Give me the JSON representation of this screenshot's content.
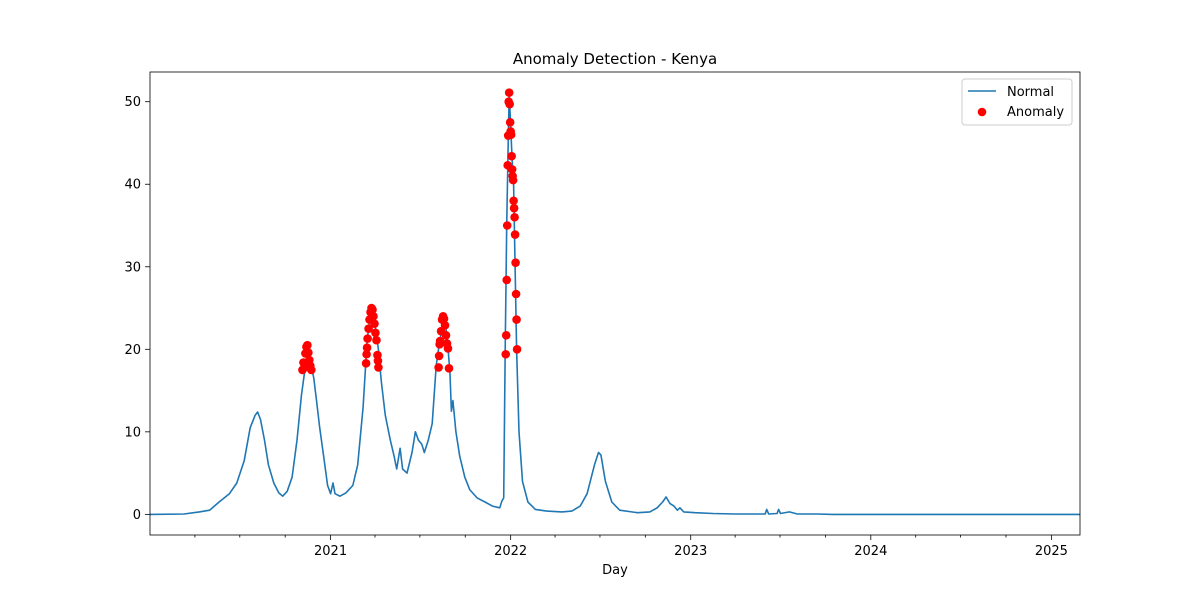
{
  "chart_data": {
    "type": "line",
    "title": "Anomaly Detection - Kenya",
    "xlabel": "Day",
    "ylabel": "",
    "xlim": [
      "2020-01-01",
      "2025-02-28"
    ],
    "ylim": [
      -2.5,
      53.6
    ],
    "x_ticks": [
      {
        "value": "2021-01-01",
        "label": "2021"
      },
      {
        "value": "2022-01-01",
        "label": "2022"
      },
      {
        "value": "2023-01-01",
        "label": "2023"
      },
      {
        "value": "2024-01-01",
        "label": "2024"
      },
      {
        "value": "2025-01-01",
        "label": "2025"
      }
    ],
    "y_ticks": [
      0,
      10,
      20,
      30,
      40,
      50
    ],
    "legend": {
      "placement": "top-right",
      "entries": [
        "Normal",
        "Anomaly"
      ]
    },
    "colors": {
      "normal": "#1f77b4",
      "anomaly": "#ff0000"
    },
    "series": [
      {
        "name": "Normal",
        "type": "line",
        "points": [
          [
            "2020-01-01",
            0
          ],
          [
            "2020-03-10",
            0.05
          ],
          [
            "2020-04-10",
            0.3
          ],
          [
            "2020-05-01",
            0.5
          ],
          [
            "2020-05-20",
            1.5
          ],
          [
            "2020-06-10",
            2.5
          ],
          [
            "2020-06-25",
            3.8
          ],
          [
            "2020-07-10",
            6.5
          ],
          [
            "2020-07-22",
            10.5
          ],
          [
            "2020-08-01",
            12.0
          ],
          [
            "2020-08-06",
            12.4
          ],
          [
            "2020-08-12",
            11.5
          ],
          [
            "2020-08-20",
            9.0
          ],
          [
            "2020-08-28",
            6.0
          ],
          [
            "2020-09-08",
            3.8
          ],
          [
            "2020-09-18",
            2.6
          ],
          [
            "2020-09-26",
            2.2
          ],
          [
            "2020-10-05",
            2.8
          ],
          [
            "2020-10-15",
            4.5
          ],
          [
            "2020-10-25",
            9.0
          ],
          [
            "2020-11-03",
            14.5
          ],
          [
            "2020-11-10",
            17.5
          ],
          [
            "2020-11-15",
            19.0
          ],
          [
            "2020-11-18",
            19.6
          ],
          [
            "2020-11-23",
            18.0
          ],
          [
            "2020-11-28",
            16.5
          ],
          [
            "2020-12-04",
            13.5
          ],
          [
            "2020-12-10",
            10.5
          ],
          [
            "2020-12-18",
            7.0
          ],
          [
            "2020-12-26",
            3.5
          ],
          [
            "2021-01-01",
            2.5
          ],
          [
            "2021-01-06",
            3.8
          ],
          [
            "2021-01-10",
            2.5
          ],
          [
            "2021-01-20",
            2.2
          ],
          [
            "2021-02-01",
            2.6
          ],
          [
            "2021-02-15",
            3.5
          ],
          [
            "2021-02-25",
            6.0
          ],
          [
            "2021-03-08",
            13.0
          ],
          [
            "2021-03-16",
            21.0
          ],
          [
            "2021-03-22",
            24.0
          ],
          [
            "2021-03-26",
            24.8
          ],
          [
            "2021-04-01",
            23.0
          ],
          [
            "2021-04-08",
            20.0
          ],
          [
            "2021-04-14",
            16.0
          ],
          [
            "2021-04-22",
            12.0
          ],
          [
            "2021-05-02",
            9.0
          ],
          [
            "2021-05-10",
            7.0
          ],
          [
            "2021-05-15",
            5.5
          ],
          [
            "2021-05-22",
            8.0
          ],
          [
            "2021-05-27",
            5.5
          ],
          [
            "2021-06-05",
            5.0
          ],
          [
            "2021-06-15",
            7.5
          ],
          [
            "2021-06-22",
            10.0
          ],
          [
            "2021-06-28",
            9.0
          ],
          [
            "2021-07-05",
            8.5
          ],
          [
            "2021-07-10",
            7.5
          ],
          [
            "2021-07-18",
            9.0
          ],
          [
            "2021-07-26",
            11.0
          ],
          [
            "2021-08-03",
            18.0
          ],
          [
            "2021-08-10",
            21.0
          ],
          [
            "2021-08-17",
            23.0
          ],
          [
            "2021-08-20",
            24.0
          ],
          [
            "2021-08-26",
            21.0
          ],
          [
            "2021-08-31",
            17.0
          ],
          [
            "2021-09-03",
            12.5
          ],
          [
            "2021-09-06",
            13.8
          ],
          [
            "2021-09-12",
            10.0
          ],
          [
            "2021-09-20",
            7.0
          ],
          [
            "2021-09-30",
            4.5
          ],
          [
            "2021-10-10",
            3.0
          ],
          [
            "2021-10-25",
            2.0
          ],
          [
            "2021-11-10",
            1.5
          ],
          [
            "2021-11-25",
            1.0
          ],
          [
            "2021-12-10",
            0.8
          ],
          [
            "2021-12-14",
            1.6
          ],
          [
            "2021-12-18",
            2.0
          ],
          [
            "2021-12-21",
            20.0
          ],
          [
            "2021-12-24",
            35.0
          ],
          [
            "2021-12-27",
            45.0
          ],
          [
            "2021-12-29",
            51.0
          ],
          [
            "2022-01-01",
            47.0
          ],
          [
            "2022-01-04",
            43.0
          ],
          [
            "2022-01-07",
            40.0
          ],
          [
            "2022-01-10",
            30.0
          ],
          [
            "2022-01-13",
            20.0
          ],
          [
            "2022-01-18",
            10.0
          ],
          [
            "2022-01-25",
            4.0
          ],
          [
            "2022-02-05",
            1.5
          ],
          [
            "2022-02-20",
            0.6
          ],
          [
            "2022-03-15",
            0.4
          ],
          [
            "2022-04-15",
            0.3
          ],
          [
            "2022-05-05",
            0.4
          ],
          [
            "2022-05-22",
            1.0
          ],
          [
            "2022-06-05",
            2.5
          ],
          [
            "2022-06-20",
            6.0
          ],
          [
            "2022-06-28",
            7.5
          ],
          [
            "2022-07-03",
            7.2
          ],
          [
            "2022-07-12",
            4.0
          ],
          [
            "2022-07-25",
            1.5
          ],
          [
            "2022-08-10",
            0.5
          ],
          [
            "2022-09-15",
            0.2
          ],
          [
            "2022-10-10",
            0.3
          ],
          [
            "2022-10-25",
            0.8
          ],
          [
            "2022-11-05",
            1.5
          ],
          [
            "2022-11-12",
            2.1
          ],
          [
            "2022-11-20",
            1.3
          ],
          [
            "2022-11-28",
            1.0
          ],
          [
            "2022-12-05",
            0.5
          ],
          [
            "2022-12-10",
            0.8
          ],
          [
            "2022-12-18",
            0.3
          ],
          [
            "2023-01-10",
            0.2
          ],
          [
            "2023-02-15",
            0.1
          ],
          [
            "2023-04-01",
            0.05
          ],
          [
            "2023-06-01",
            0.05
          ],
          [
            "2023-06-04",
            0.6
          ],
          [
            "2023-06-08",
            0.05
          ],
          [
            "2023-06-25",
            0.1
          ],
          [
            "2023-06-28",
            0.6
          ],
          [
            "2023-07-02",
            0.1
          ],
          [
            "2023-07-20",
            0.3
          ],
          [
            "2023-08-05",
            0.05
          ],
          [
            "2023-09-15",
            0.05
          ],
          [
            "2023-10-15",
            0.0
          ],
          [
            "2025-02-28",
            0.0
          ]
        ]
      },
      {
        "name": "Anomaly",
        "type": "scatter",
        "points": [
          [
            "2020-11-05",
            17.5
          ],
          [
            "2020-11-07",
            18.4
          ],
          [
            "2020-11-09",
            17.8
          ],
          [
            "2020-11-11",
            19.5
          ],
          [
            "2020-11-13",
            20.3
          ],
          [
            "2020-11-15",
            20.5
          ],
          [
            "2020-11-17",
            19.6
          ],
          [
            "2020-11-19",
            18.7
          ],
          [
            "2020-11-21",
            18.0
          ],
          [
            "2020-11-23",
            17.5
          ],
          [
            "2021-03-14",
            18.3
          ],
          [
            "2021-03-15",
            19.4
          ],
          [
            "2021-03-16",
            20.2
          ],
          [
            "2021-03-17",
            21.3
          ],
          [
            "2021-03-19",
            22.5
          ],
          [
            "2021-03-21",
            23.6
          ],
          [
            "2021-03-23",
            24.5
          ],
          [
            "2021-03-25",
            25.0
          ],
          [
            "2021-03-27",
            24.8
          ],
          [
            "2021-03-29",
            24.0
          ],
          [
            "2021-03-31",
            23.1
          ],
          [
            "2021-04-02",
            22.0
          ],
          [
            "2021-04-04",
            21.1
          ],
          [
            "2021-04-06",
            19.3
          ],
          [
            "2021-04-07",
            18.6
          ],
          [
            "2021-04-08",
            17.8
          ],
          [
            "2021-08-08",
            17.8
          ],
          [
            "2021-08-09",
            19.2
          ],
          [
            "2021-08-10",
            20.6
          ],
          [
            "2021-08-11",
            21.0
          ],
          [
            "2021-08-13",
            22.2
          ],
          [
            "2021-08-15",
            23.6
          ],
          [
            "2021-08-17",
            24.0
          ],
          [
            "2021-08-19",
            23.7
          ],
          [
            "2021-08-21",
            22.9
          ],
          [
            "2021-08-23",
            21.7
          ],
          [
            "2021-08-25",
            20.7
          ],
          [
            "2021-08-27",
            20.1
          ],
          [
            "2021-08-29",
            17.7
          ],
          [
            "2021-12-22",
            19.4
          ],
          [
            "2021-12-23",
            21.7
          ],
          [
            "2021-12-24",
            28.4
          ],
          [
            "2021-12-25",
            35.0
          ],
          [
            "2021-12-26",
            42.3
          ],
          [
            "2021-12-27",
            45.9
          ],
          [
            "2021-12-28",
            50.0
          ],
          [
            "2021-12-29",
            51.1
          ],
          [
            "2021-12-30",
            49.7
          ],
          [
            "2021-12-31",
            47.5
          ],
          [
            "2022-01-01",
            46.4
          ],
          [
            "2022-01-02",
            46.0
          ],
          [
            "2022-01-03",
            43.4
          ],
          [
            "2022-01-04",
            41.8
          ],
          [
            "2022-01-05",
            41.0
          ],
          [
            "2022-01-06",
            40.5
          ],
          [
            "2022-01-07",
            38.0
          ],
          [
            "2022-01-08",
            37.1
          ],
          [
            "2022-01-09",
            36.0
          ],
          [
            "2022-01-10",
            33.9
          ],
          [
            "2022-01-11",
            30.5
          ],
          [
            "2022-01-12",
            26.7
          ],
          [
            "2022-01-13",
            23.6
          ],
          [
            "2022-01-14",
            20.0
          ]
        ]
      }
    ]
  }
}
